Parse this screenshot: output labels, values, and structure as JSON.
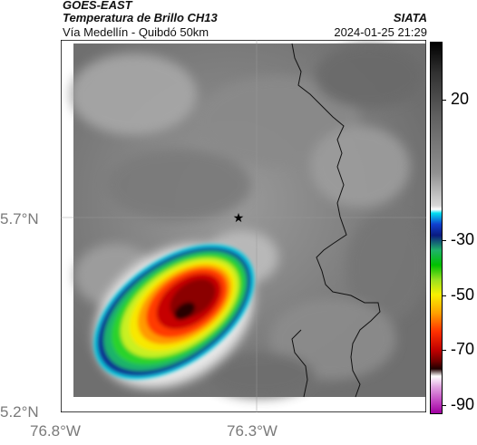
{
  "header": {
    "satellite": "GOES-EAST",
    "product": "Temperatura de Brillo CH13",
    "region": "Vía Medellín - Quibdó 50km",
    "agency": "SIATA",
    "datetime": "2024-01-25 21:29"
  },
  "axes": {
    "lat_labels": [
      "5.7°N",
      "5.2°N"
    ],
    "lon_labels": [
      "76.8°W",
      "76.3°W"
    ]
  },
  "colorbar": {
    "ticks": [
      "20",
      "-30",
      "-50",
      "-70",
      "-90"
    ]
  },
  "map": {
    "marker_icon": "star-icon"
  },
  "colors": {
    "cloud_core": "#8b0000",
    "cloud_edge": "#00c8e0",
    "background_gray": "#7f7f7f"
  }
}
